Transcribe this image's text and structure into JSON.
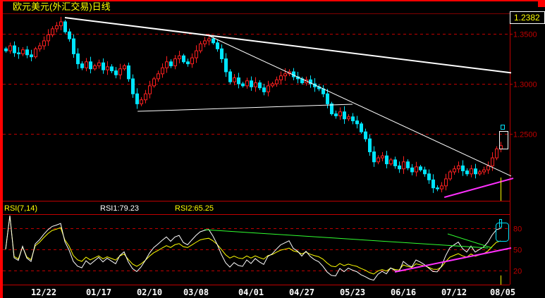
{
  "title": "欧元美元(外汇交易)日线",
  "last_price_label": "1.2382",
  "colors": {
    "up": "#ff2020",
    "down": "#00e5ff",
    "axis": "#c00000",
    "rsi1": "#ffffff",
    "rsi2": "#ffff00",
    "trend_white": "#ffffff",
    "trend_magenta": "#ff30ff",
    "trend_green": "#30ff30"
  },
  "rsi_header": {
    "name": "RSI(7,14)",
    "rsi1": "RSI1:79.23",
    "rsi2": "RSI2:65.25"
  },
  "chart_data": [
    {
      "type": "candlestick",
      "title": "欧元美元(外汇交易)日线",
      "ylim": [
        1.18,
        1.375
      ],
      "y_ticks": [
        {
          "v": 1.35,
          "label": "1.3500"
        },
        {
          "v": 1.3,
          "label": "1.3000"
        },
        {
          "v": 1.25,
          "label": "1.2500"
        }
      ],
      "x_ticks": [
        {
          "i": 9,
          "label": "12/22"
        },
        {
          "i": 22,
          "label": "01/17"
        },
        {
          "i": 34,
          "label": "02/10"
        },
        {
          "i": 45,
          "label": "03/08"
        },
        {
          "i": 58,
          "label": "04/01"
        },
        {
          "i": 70,
          "label": "04/27"
        },
        {
          "i": 82,
          "label": "05/23"
        },
        {
          "i": 94,
          "label": "06/16"
        },
        {
          "i": 106,
          "label": "07/12"
        },
        {
          "i": 117.5,
          "label": "08/05"
        }
      ],
      "grid": "dashed-horizontal",
      "closes": [
        1.333,
        1.338,
        1.331,
        1.33,
        1.334,
        1.329,
        1.327,
        1.335,
        1.338,
        1.343,
        1.349,
        1.355,
        1.358,
        1.362,
        1.352,
        1.345,
        1.33,
        1.32,
        1.316,
        1.322,
        1.315,
        1.318,
        1.321,
        1.314,
        1.317,
        1.313,
        1.309,
        1.315,
        1.318,
        1.305,
        1.29,
        1.28,
        1.284,
        1.29,
        1.298,
        1.305,
        1.31,
        1.316,
        1.322,
        1.318,
        1.325,
        1.328,
        1.322,
        1.32,
        1.326,
        1.333,
        1.34,
        1.343,
        1.345,
        1.341,
        1.335,
        1.325,
        1.312,
        1.302,
        1.306,
        1.3,
        1.298,
        1.303,
        1.297,
        1.301,
        1.296,
        1.292,
        1.298,
        1.3,
        1.304,
        1.308,
        1.31,
        1.312,
        1.307,
        1.305,
        1.301,
        1.304,
        1.3,
        1.297,
        1.295,
        1.29,
        1.28,
        1.27,
        1.268,
        1.272,
        1.265,
        1.267,
        1.263,
        1.26,
        1.252,
        1.245,
        1.232,
        1.222,
        1.226,
        1.228,
        1.22,
        1.224,
        1.218,
        1.215,
        1.222,
        1.216,
        1.212,
        1.217,
        1.214,
        1.21,
        1.204,
        1.196,
        1.195,
        1.198,
        1.205,
        1.212,
        1.215,
        1.218,
        1.213,
        1.21,
        1.215,
        1.21,
        1.212,
        1.214,
        1.218,
        1.226,
        1.235,
        1.2382
      ],
      "trendlines": [
        {
          "color": "#ffffff",
          "from": [
            14,
            1.3662
          ],
          "to": [
            119.5,
            1.311
          ],
          "width": 2
        },
        {
          "color": "#ffffff",
          "from": [
            47.8,
            1.3486
          ],
          "to": [
            119.5,
            1.2078
          ],
          "width": 1
        },
        {
          "color": "#ffffff",
          "from": [
            31.2,
            1.2725
          ],
          "to": [
            82,
            1.2796
          ],
          "width": 1
        },
        {
          "color": "#ff30ff",
          "from": [
            103.7,
            1.1866
          ],
          "to": [
            120,
            1.2056
          ],
          "width": 2
        }
      ]
    },
    {
      "type": "line",
      "title": "RSI(7,14)",
      "ylim": [
        0,
        100
      ],
      "y_ticks": [
        {
          "v": 80,
          "label": "80"
        },
        {
          "v": 50,
          "label": "50"
        },
        {
          "v": 20,
          "label": "20"
        }
      ],
      "series": [
        {
          "name": "RSI1",
          "period": 7,
          "last": 79.23
        },
        {
          "name": "RSI2",
          "period": 14,
          "last": 65.25
        }
      ],
      "trendlines": [
        {
          "color": "#30ff30",
          "from": [
            47,
            78
          ],
          "to": [
            114,
            52
          ],
          "width": 1
        },
        {
          "color": "#30ff30",
          "from": [
            104.5,
            72
          ],
          "to": [
            115,
            52
          ],
          "width": 1
        },
        {
          "color": "#ff30ff",
          "from": [
            92,
            18
          ],
          "to": [
            119.5,
            52
          ],
          "width": 2
        }
      ]
    }
  ]
}
